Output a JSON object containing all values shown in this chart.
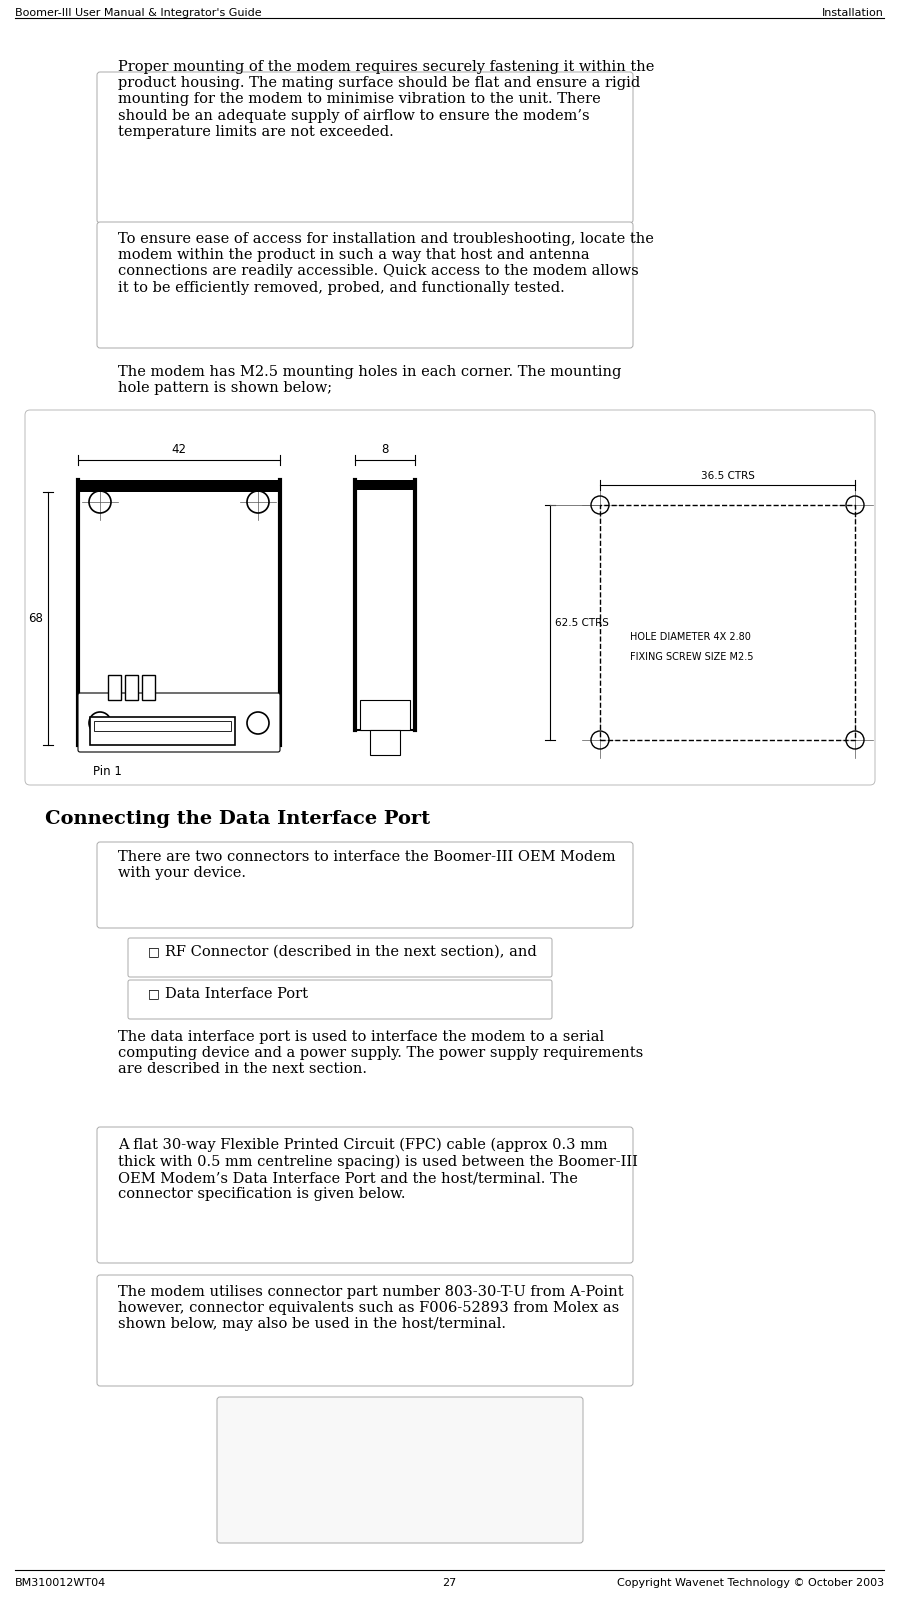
{
  "header_left": "Boomer-III User Manual & Integrator's Guide",
  "header_right": "Installation",
  "footer_left": "BM310012WT04",
  "footer_center": "27",
  "footer_right": "Copyright Wavenet Technology © October 2003",
  "bg_color": "#ffffff",
  "para1": "Proper mounting of the modem requires securely fastening it within the\nproduct housing. The mating surface should be flat and ensure a rigid\nmounting for the modem to minimise vibration to the unit. There\nshould be an adequate supply of airflow to ensure the modem’s\ntemperature limits are not exceeded.",
  "para2": "To ensure ease of access for installation and troubleshooting, locate the\nmodem within the product in such a way that host and antenna\nconnections are readily accessible. Quick access to the modem allows\nit to be efficiently removed, probed, and functionally tested.",
  "para3": "The modem has M2.5 mounting holes in each corner. The mounting\nhole pattern is shown below;",
  "section_title": "Connecting the Data Interface Port",
  "para4": "There are two connectors to interface the Boomer-III OEM Modem\nwith your device.",
  "bullet1": "RF Connector (described in the next section), and",
  "bullet2": "Data Interface Port",
  "para5": "The data interface port is used to interface the modem to a serial\ncomputing device and a power supply. The power supply requirements\nare described in the next section.",
  "para6": "A flat 30-way Flexible Printed Circuit (FPC) cable (approx 0.3 mm\nthick with 0.5 mm centreline spacing) is used between the Boomer-III\nOEM Modem’s Data Interface Port and the host/terminal. The\nconnector specification is given below.",
  "para7": "The modem utilises connector part number 803-30-T-U from A-Point\nhowever, connector equivalents such as F006-52893 from Molex as\nshown below, may also be used in the host/terminal.",
  "pin1_label": "Pin 1",
  "dim_42": "42",
  "dim_8": "8",
  "dim_68": "68",
  "dim_365ctrs": "36.5 CTRS",
  "dim_625ctrs": "62.5 CTRS",
  "hole_label1": "HOLE DIAMETER 4X 2.80",
  "hole_label2": "FIXING SCREW SIZE M2.5"
}
